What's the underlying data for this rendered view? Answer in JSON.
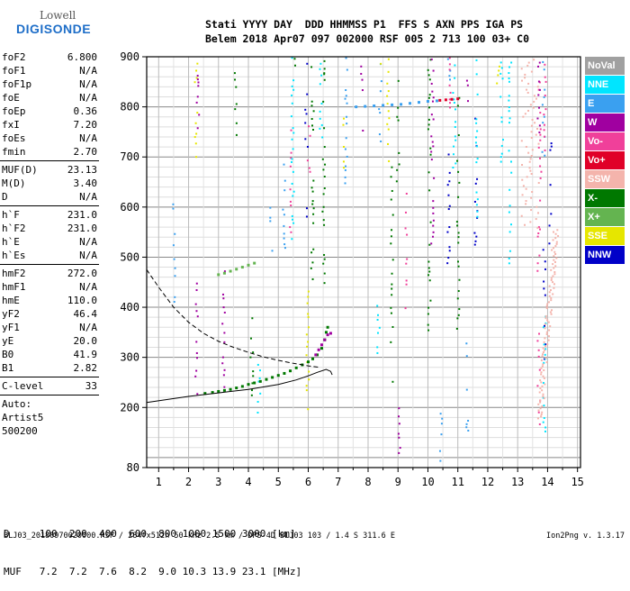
{
  "logo": {
    "brand_small": "Lowell",
    "brand_main": "DIGISONDE"
  },
  "header": {
    "line1": "Stati YYYY DAY  DDD HHMMSS P1  FFS S AXN PPS IGA PS",
    "line2": "Belem 2018 Apr07 097 002000 RSF 005 2 713 100 03+ C0"
  },
  "params": {
    "group1": [
      {
        "label": "foF2",
        "value": "6.800"
      },
      {
        "label": "foF1",
        "value": "N/A"
      },
      {
        "label": "foF1p",
        "value": "N/A"
      },
      {
        "label": "foE",
        "value": "N/A"
      },
      {
        "label": "foEp",
        "value": "0.36"
      },
      {
        "label": "fxI",
        "value": "7.20"
      },
      {
        "label": "foEs",
        "value": "N/A"
      },
      {
        "label": "fmin",
        "value": "2.70"
      }
    ],
    "group2": [
      {
        "label": "MUF(D)",
        "value": "23.13"
      },
      {
        "label": "M(D)",
        "value": "3.40"
      },
      {
        "label": "D",
        "value": "N/A"
      }
    ],
    "group3": [
      {
        "label": "h`F",
        "value": "231.0"
      },
      {
        "label": "h`F2",
        "value": "231.0"
      },
      {
        "label": "h`E",
        "value": "N/A"
      },
      {
        "label": "h`Es",
        "value": "N/A"
      }
    ],
    "group4": [
      {
        "label": "hmF2",
        "value": "272.0"
      },
      {
        "label": "hmF1",
        "value": "N/A"
      },
      {
        "label": "hmE",
        "value": "110.0"
      },
      {
        "label": "yF2",
        "value": "46.4"
      },
      {
        "label": "yF1",
        "value": "N/A"
      },
      {
        "label": "yE",
        "value": "20.0"
      },
      {
        "label": "B0",
        "value": "41.9"
      },
      {
        "label": "B1",
        "value": "2.82"
      }
    ],
    "group5": [
      {
        "label": "C-level",
        "value": "33"
      }
    ],
    "auto_lines": [
      "Auto:",
      "Artist5",
      "500200"
    ]
  },
  "legend": [
    {
      "label": "NoVal",
      "color": "#a0a0a0"
    },
    {
      "label": "NNE",
      "color": "#00e5ff"
    },
    {
      "label": "E",
      "color": "#3aa0f0"
    },
    {
      "label": "W",
      "color": "#a000a0"
    },
    {
      "label": "Vo-",
      "color": "#f0409a"
    },
    {
      "label": "Vo+",
      "color": "#e00028"
    },
    {
      "label": "SSW",
      "color": "#f4b4ac"
    },
    {
      "label": "X-",
      "color": "#007800"
    },
    {
      "label": "X+",
      "color": "#64b450"
    },
    {
      "label": "SSE",
      "color": "#e6e600"
    },
    {
      "label": "NNW",
      "color": "#0000c8"
    }
  ],
  "distance_table": {
    "line1": "D     100  200  400  600  800 1000 1500 3000 [km]",
    "line2": "MUF   7.2  7.2  7.6  8.2  9.0 10.3 13.9 23.1 [MHz]"
  },
  "footer": {
    "info": "BLJ03_20180970020000.RSF / 284fx512h 50 kHz 2.5 km / DPS-4D BLJ03 103 / 1.4 S 311.6 E",
    "version": "Ion2Png v. 1.3.17"
  },
  "chart_data": {
    "type": "scatter",
    "title": "",
    "xlabel": "",
    "ylabel": "",
    "xlim": [
      0.6,
      15.1
    ],
    "ylim": [
      80,
      900
    ],
    "x_ticks": [
      1,
      2,
      3,
      4,
      5,
      6,
      7,
      8,
      9,
      10,
      11,
      12,
      13,
      14,
      15
    ],
    "y_ticks": [
      80,
      200,
      300,
      400,
      500,
      600,
      700,
      800,
      900
    ],
    "grid": true,
    "series": [
      {
        "name": "X-",
        "values": [
          [
            2.55,
            228
          ],
          [
            2.8,
            230
          ],
          [
            3.0,
            232
          ],
          [
            3.2,
            234
          ],
          [
            3.4,
            236
          ],
          [
            3.6,
            239
          ],
          [
            3.8,
            242
          ],
          [
            4.0,
            246
          ],
          [
            4.2,
            249
          ],
          [
            4.4,
            252
          ],
          [
            4.6,
            256
          ],
          [
            4.8,
            260
          ],
          [
            5.0,
            264
          ],
          [
            5.2,
            268
          ],
          [
            5.4,
            273
          ],
          [
            5.6,
            279
          ],
          [
            5.8,
            285
          ],
          [
            6.0,
            291
          ],
          [
            6.15,
            297
          ],
          [
            6.3,
            305
          ],
          [
            6.45,
            318
          ],
          [
            6.55,
            335
          ],
          [
            6.6,
            350
          ],
          [
            6.65,
            360
          ]
        ]
      },
      {
        "name": "W",
        "values": [
          [
            6.25,
            305
          ],
          [
            6.35,
            315
          ],
          [
            6.45,
            325
          ],
          [
            6.55,
            335
          ],
          [
            6.65,
            345
          ],
          [
            6.75,
            348
          ]
        ]
      },
      {
        "name": "X+",
        "values": [
          [
            3.0,
            465
          ],
          [
            3.2,
            468
          ],
          [
            3.4,
            472
          ],
          [
            3.6,
            476
          ],
          [
            3.8,
            480
          ],
          [
            4.0,
            484
          ],
          [
            4.2,
            488
          ]
        ]
      },
      {
        "name": "E",
        "values": [
          [
            7.6,
            800
          ],
          [
            7.9,
            801
          ],
          [
            8.2,
            802
          ],
          [
            8.5,
            803
          ],
          [
            8.8,
            804
          ],
          [
            9.1,
            805
          ],
          [
            9.4,
            807
          ],
          [
            9.7,
            809
          ],
          [
            10.0,
            811
          ],
          [
            10.3,
            812
          ]
        ]
      },
      {
        "name": "Vo+",
        "values": [
          [
            10.4,
            813
          ],
          [
            10.6,
            814
          ],
          [
            10.8,
            815
          ],
          [
            11.0,
            816
          ]
        ]
      }
    ],
    "profile_traces": [
      {
        "name": "profile-solid",
        "values": [
          [
            0.6,
            210
          ],
          [
            2.0,
            222
          ],
          [
            3.0,
            229
          ],
          [
            4.0,
            236
          ],
          [
            5.0,
            246
          ],
          [
            5.6,
            255
          ],
          [
            6.0,
            263
          ],
          [
            6.3,
            270
          ],
          [
            6.6,
            276
          ],
          [
            6.75,
            272
          ],
          [
            6.8,
            265
          ]
        ]
      },
      {
        "name": "profile-dashed",
        "values": [
          [
            0.6,
            475
          ],
          [
            1.0,
            440
          ],
          [
            1.5,
            400
          ],
          [
            2.0,
            370
          ],
          [
            2.5,
            348
          ],
          [
            3.0,
            332
          ],
          [
            3.5,
            320
          ],
          [
            4.0,
            310
          ],
          [
            4.5,
            301
          ],
          [
            5.0,
            294
          ],
          [
            5.5,
            288
          ],
          [
            6.0,
            283
          ],
          [
            6.4,
            280
          ]
        ]
      }
    ]
  }
}
